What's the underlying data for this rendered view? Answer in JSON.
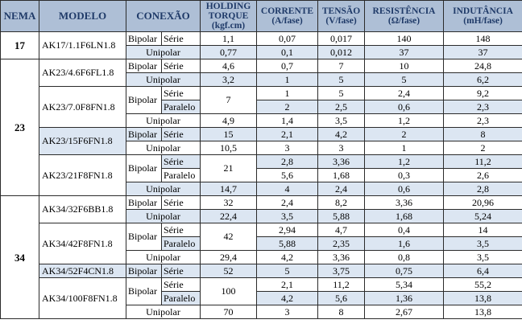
{
  "headers": {
    "nema": "NEMA",
    "model": "MODELO",
    "connection": "CONEXÃO",
    "torque": [
      "HOLDING",
      "TORQUE",
      "(kgf.cm)"
    ],
    "current": [
      "CORRENTE",
      "(A/fase)"
    ],
    "voltage": [
      "TENSÃO",
      "(V/fase)"
    ],
    "resistance": [
      "RESISTÊNCIA",
      "(Ω/fase)"
    ],
    "inductance": [
      "INDUTÂNCIA",
      "(mH/fase)"
    ]
  },
  "groups": [
    {
      "nema": "17",
      "models": [
        {
          "name": "AK17/1.1F6LN1.8",
          "shaded_model": false,
          "bipolar": [
            {
              "mode": "Série",
              "torque": "1,1",
              "current": "0,07",
              "voltage": "0,017",
              "resistance": "140",
              "inductance": "148"
            }
          ],
          "bipolar_torque": null,
          "unipolar": {
            "label": "Unipolar",
            "torque": "0,77",
            "current": "0,1",
            "voltage": "0,012",
            "resistance": "37",
            "inductance": "37"
          }
        }
      ]
    },
    {
      "nema": "23",
      "models": [
        {
          "name": "AK23/4.6F6FL1.8",
          "shaded_model": false,
          "bipolar": [
            {
              "mode": "Série",
              "torque": "4,6",
              "current": "0,7",
              "voltage": "7",
              "resistance": "10",
              "inductance": "24,8"
            }
          ],
          "bipolar_torque": null,
          "unipolar": {
            "label": "Unipolar",
            "torque": "3,2",
            "current": "1",
            "voltage": "5",
            "resistance": "5",
            "inductance": "6,2"
          }
        },
        {
          "name": "AK23/7.0F8FN1.8",
          "shaded_model": false,
          "bipolar": [
            {
              "mode": "Série",
              "current": "1",
              "voltage": "5",
              "resistance": "2,4",
              "inductance": "9,2"
            },
            {
              "mode": "Paralelo",
              "current": "2",
              "voltage": "2,5",
              "resistance": "0,6",
              "inductance": "2,3"
            }
          ],
          "bipolar_torque": "7",
          "unipolar": {
            "label": "Unipolar",
            "torque": "4,9",
            "current": "1,4",
            "voltage": "3,5",
            "resistance": "1,2",
            "inductance": "2,3"
          }
        },
        {
          "name": "AK23/15F6FN1.8",
          "shaded_model": true,
          "bipolar": [
            {
              "mode": "Série",
              "torque": "15",
              "current": "2,1",
              "voltage": "4,2",
              "resistance": "2",
              "inductance": "8"
            }
          ],
          "bipolar_torque": null,
          "unipolar": {
            "label": "Unipolar",
            "torque": "10,5",
            "current": "3",
            "voltage": "3",
            "resistance": "1",
            "inductance": "2"
          }
        },
        {
          "name": "AK23/21F8FN1.8",
          "shaded_model": false,
          "bipolar": [
            {
              "mode": "Série",
              "current": "2,8",
              "voltage": "3,36",
              "resistance": "1,2",
              "inductance": "11,2"
            },
            {
              "mode": "Paralelo",
              "current": "5,6",
              "voltage": "1,68",
              "resistance": "0,3",
              "inductance": "2,6"
            }
          ],
          "bipolar_torque": "21",
          "unipolar": {
            "label": "Unipolar",
            "torque": "14,7",
            "current": "4",
            "voltage": "2,4",
            "resistance": "0,6",
            "inductance": "2,8"
          }
        }
      ]
    },
    {
      "nema": "34",
      "models": [
        {
          "name": "AK34/32F6BB1.8",
          "shaded_model": false,
          "bipolar": [
            {
              "mode": "Série",
              "torque": "32",
              "current": "2,4",
              "voltage": "8,2",
              "resistance": "3,36",
              "inductance": "20,96"
            }
          ],
          "bipolar_torque": null,
          "unipolar": {
            "label": "Unipolar",
            "torque": "22,4",
            "current": "3,5",
            "voltage": "5,88",
            "resistance": "1,68",
            "inductance": "5,24"
          }
        },
        {
          "name": "AK34/42F8FN1.8",
          "shaded_model": false,
          "bipolar": [
            {
              "mode": "Série",
              "current": "2,94",
              "voltage": "4,7",
              "resistance": "0,4",
              "inductance": "14"
            },
            {
              "mode": "Paralelo",
              "current": "5,88",
              "voltage": "2,35",
              "resistance": "1,6",
              "inductance": "3,5"
            }
          ],
          "bipolar_torque": "42",
          "unipolar": {
            "label": "Unipolar",
            "torque": "29,4",
            "current": "4,2",
            "voltage": "3,36",
            "resistance": "0,8",
            "inductance": "3,5"
          }
        },
        {
          "name": "AK34/52F4CN1.8",
          "shaded_model": true,
          "bipolar": [
            {
              "mode": "Série",
              "torque": "52",
              "current": "5",
              "voltage": "3,75",
              "resistance": "0,75",
              "inductance": "6,4"
            }
          ],
          "bipolar_torque": null,
          "unipolar": null
        },
        {
          "name": "AK34/100F8FN1.8",
          "shaded_model": false,
          "bipolar": [
            {
              "mode": "Série",
              "current": "2,1",
              "voltage": "11,2",
              "resistance": "5,34",
              "inductance": "55,2"
            },
            {
              "mode": "Paralelo",
              "current": "4,2",
              "voltage": "5,6",
              "resistance": "1,36",
              "inductance": "13,8"
            }
          ],
          "bipolar_torque": "100",
          "unipolar": {
            "label": "Unipolar",
            "torque": "70",
            "current": "3",
            "voltage": "8",
            "resistance": "2,67",
            "inductance": "13,8"
          }
        }
      ]
    }
  ],
  "labels": {
    "bipolar": "Bipolar"
  },
  "colors": {
    "header_bg": "#aebfd6",
    "header_text": "#1f3a68",
    "row_shade": "#dce6f2",
    "border": "#2b2b2b"
  }
}
